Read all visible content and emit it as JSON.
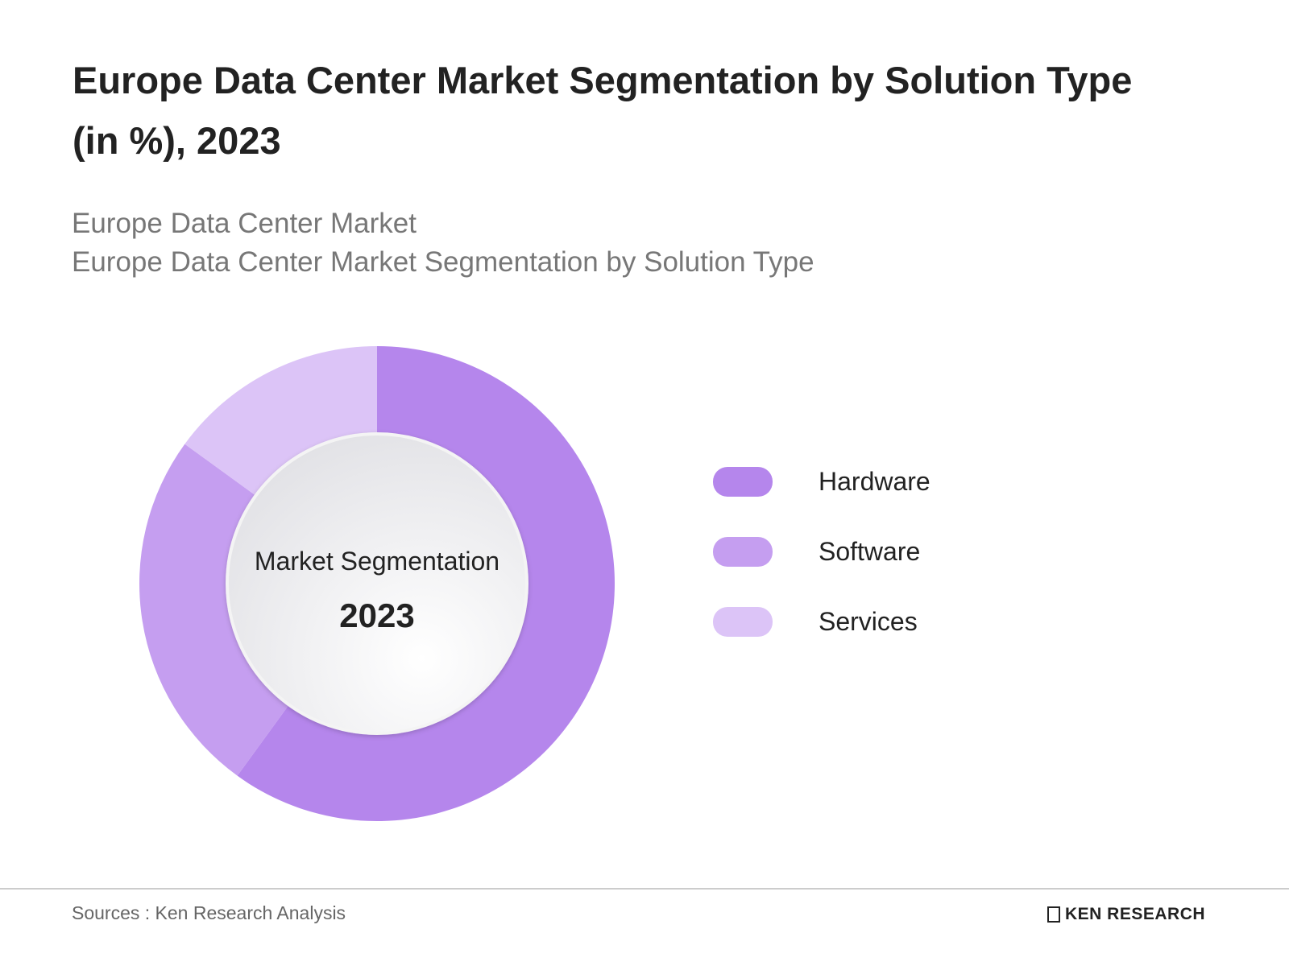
{
  "chart_data": {
    "type": "donut",
    "title": "Europe Data Center Market Segmentation by Solution Type (in %), 2023",
    "subtitle": [
      "Europe Data Center Market",
      "Europe Data Center Market Segmentation by Solution Type"
    ],
    "center_text": "Market Segmentation",
    "center_year": "2023",
    "categories": [
      "Hardware",
      "Software",
      "Services"
    ],
    "values": [
      60,
      25,
      15
    ],
    "colors": [
      "#b586ec",
      "#c59ef0",
      "#dcc4f7"
    ],
    "legend": "right"
  },
  "footer": {
    "source": "Sources : Ken Research Analysis",
    "logo": "KEN RESEARCH"
  }
}
